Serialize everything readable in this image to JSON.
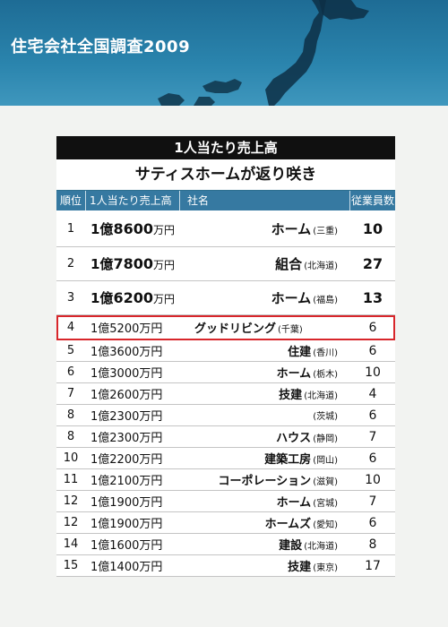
{
  "banner": {
    "title": "住宅会社全国調査2009"
  },
  "table": {
    "header": "1人当たり売上高",
    "subheader": "サティスホームが返り咲き",
    "columns": {
      "rank": "順位",
      "sales": "1人当たり売上高",
      "company": "社名",
      "employees": "従業員数"
    },
    "rows": [
      {
        "rank": "1",
        "oku": "1億",
        "man": "8600",
        "unit": "万円",
        "name": "ホーム",
        "pref": "(三重)",
        "employees": "10"
      },
      {
        "rank": "2",
        "oku": "1億",
        "man": "7800",
        "unit": "万円",
        "name": "組合",
        "pref": "(北海道)",
        "employees": "27"
      },
      {
        "rank": "3",
        "oku": "1億",
        "man": "6200",
        "unit": "万円",
        "name": "ホーム",
        "pref": "(福島)",
        "employees": "13"
      },
      {
        "rank": "4",
        "oku": "1億",
        "man": "5200",
        "unit": "万円",
        "name": "グッドリビング",
        "pref": "(千葉)",
        "employees": "6"
      },
      {
        "rank": "5",
        "oku": "1億",
        "man": "3600",
        "unit": "万円",
        "name": "住建",
        "pref": "(香川)",
        "employees": "6"
      },
      {
        "rank": "6",
        "oku": "1億",
        "man": "3000",
        "unit": "万円",
        "name": "ホーム",
        "pref": "(栃木)",
        "employees": "10"
      },
      {
        "rank": "7",
        "oku": "1億",
        "man": "2600",
        "unit": "万円",
        "name": "技建",
        "pref": "(北海道)",
        "employees": "4"
      },
      {
        "rank": "8",
        "oku": "1億",
        "man": "2300",
        "unit": "万円",
        "name": "",
        "pref": "(茨城)",
        "employees": "6"
      },
      {
        "rank": "8",
        "oku": "1億",
        "man": "2300",
        "unit": "万円",
        "name": "ハウス",
        "pref": "(静岡)",
        "employees": "7"
      },
      {
        "rank": "10",
        "oku": "1億",
        "man": "2200",
        "unit": "万円",
        "name": "建築工房",
        "pref": "(岡山)",
        "employees": "6"
      },
      {
        "rank": "11",
        "oku": "1億",
        "man": "2100",
        "unit": "万円",
        "name": "コーポレーション",
        "pref": "(滋賀)",
        "employees": "10"
      },
      {
        "rank": "12",
        "oku": "1億",
        "man": "1900",
        "unit": "万円",
        "name": "ホーム",
        "pref": "(宮城)",
        "employees": "7"
      },
      {
        "rank": "12",
        "oku": "1億",
        "man": "1900",
        "unit": "万円",
        "name": "ホームズ",
        "pref": "(愛知)",
        "employees": "6"
      },
      {
        "rank": "14",
        "oku": "1億",
        "man": "1600",
        "unit": "万円",
        "name": "建設",
        "pref": "(北海道)",
        "employees": "8"
      },
      {
        "rank": "15",
        "oku": "1億",
        "man": "1400",
        "unit": "万円",
        "name": "技建",
        "pref": "(東京)",
        "employees": "17"
      }
    ]
  },
  "colors": {
    "banner": "#2a84ad",
    "column_header": "#3679a1",
    "highlight": "#d8262b"
  }
}
